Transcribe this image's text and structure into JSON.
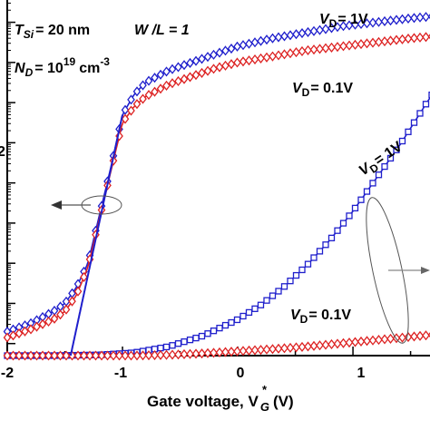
{
  "chart_data": {
    "type": "line",
    "title": "",
    "xlabel": "Gate voltage, V",
    "xlabel_sub": "G",
    "xlabel_sup": "*",
    "xlabel_unit": "(V)",
    "ylabel_left": "",
    "ylabel_right": "",
    "xlim": [
      -2.0,
      1.7
    ],
    "ylim_left_log": [
      -12.3,
      -3.4
    ],
    "ylim_right": [
      0,
      1
    ],
    "x_ticks": [
      -2,
      -1,
      0,
      1
    ],
    "x_tick_labels": [
      "-2",
      "-1",
      "0",
      "1"
    ],
    "y_tick_labels_visible": [
      "2"
    ],
    "grid": false,
    "annotations": {
      "tsi": "T",
      "tsi_sub": "Si",
      "tsi_value": "= 20 nm",
      "wl": "W /L = 1",
      "nd": "N",
      "nd_sub": "D",
      "nd_value_prefix": "= 10",
      "nd_exp": "19",
      "nd_unit": "cm",
      "nd_unit_exp": "-3",
      "vd_1v_log": "V",
      "vd_1v_log_sub": "D",
      "vd_1v_log_value": "= 1V",
      "vd_01v_log": "V",
      "vd_01v_log_sub": "D",
      "vd_01v_log_value": "= 0.1V",
      "vd_1v_lin": "V",
      "vd_1v_lin_sub": "D",
      "vd_1v_lin_value": "= 1V",
      "vd_01v_lin": "V",
      "vd_01v_lin_sub": "D",
      "vd_01v_lin_value": "= 0.1V"
    },
    "series": [
      {
        "axis": "left-log",
        "color": "#1f1fcc",
        "marker": "diamond",
        "x": [
          -2.0,
          -1.8,
          -1.6,
          -1.5,
          -1.4,
          -1.3,
          -1.2,
          -1.1,
          -1.0,
          -0.9,
          -0.8,
          -0.6,
          -0.4,
          -0.2,
          0.0,
          0.3,
          0.6,
          0.9,
          1.2,
          1.5,
          1.7
        ],
        "y": [
          -11.7,
          -11.5,
          -11.2,
          -11.0,
          -10.6,
          -10.0,
          -8.8,
          -7.6,
          -6.3,
          -5.8,
          -5.5,
          -5.2,
          -5.0,
          -4.8,
          -4.6,
          -4.4,
          -4.25,
          -4.1,
          -4.0,
          -3.9,
          -3.85
        ]
      },
      {
        "axis": "left-log",
        "color": "#dd2222",
        "marker": "diamond",
        "x": [
          -2.0,
          -1.8,
          -1.6,
          -1.5,
          -1.4,
          -1.3,
          -1.2,
          -1.1,
          -1.0,
          -0.9,
          -0.8,
          -0.6,
          -0.4,
          -0.2,
          0.0,
          0.3,
          0.6,
          0.9,
          1.2,
          1.5,
          1.7
        ],
        "y": [
          -11.85,
          -11.65,
          -11.4,
          -11.2,
          -10.8,
          -10.1,
          -8.9,
          -7.7,
          -6.5,
          -6.1,
          -5.85,
          -5.55,
          -5.35,
          -5.15,
          -5.0,
          -4.85,
          -4.7,
          -4.6,
          -4.5,
          -4.4,
          -4.35
        ]
      },
      {
        "axis": "right-linear",
        "color": "#1f1fcc",
        "marker": "square",
        "x": [
          -2.0,
          -1.6,
          -1.2,
          -0.9,
          -0.6,
          -0.3,
          0.0,
          0.2,
          0.4,
          0.6,
          0.8,
          1.0,
          1.2,
          1.4,
          1.5,
          1.6,
          1.7
        ],
        "y": [
          0.0,
          0.0,
          0.002,
          0.008,
          0.025,
          0.055,
          0.1,
          0.14,
          0.19,
          0.25,
          0.32,
          0.4,
          0.49,
          0.58,
          0.63,
          0.68,
          0.73
        ]
      },
      {
        "axis": "right-linear",
        "color": "#dd2222",
        "marker": "diamond",
        "x": [
          -2.0,
          -1.6,
          -1.2,
          -0.9,
          -0.6,
          -0.3,
          0.0,
          0.3,
          0.6,
          0.9,
          1.2,
          1.5,
          1.7
        ],
        "y": [
          0.0,
          0.0,
          0.0,
          0.0,
          0.002,
          0.006,
          0.012,
          0.018,
          0.025,
          0.034,
          0.043,
          0.052,
          0.058
        ]
      },
      {
        "axis": "left-log",
        "color": "#1f1fcc",
        "marker": "none",
        "role": "subthreshold-slope-fit",
        "x": [
          -1.45,
          -1.0
        ],
        "y": [
          -12.3,
          -6.3
        ]
      }
    ]
  }
}
